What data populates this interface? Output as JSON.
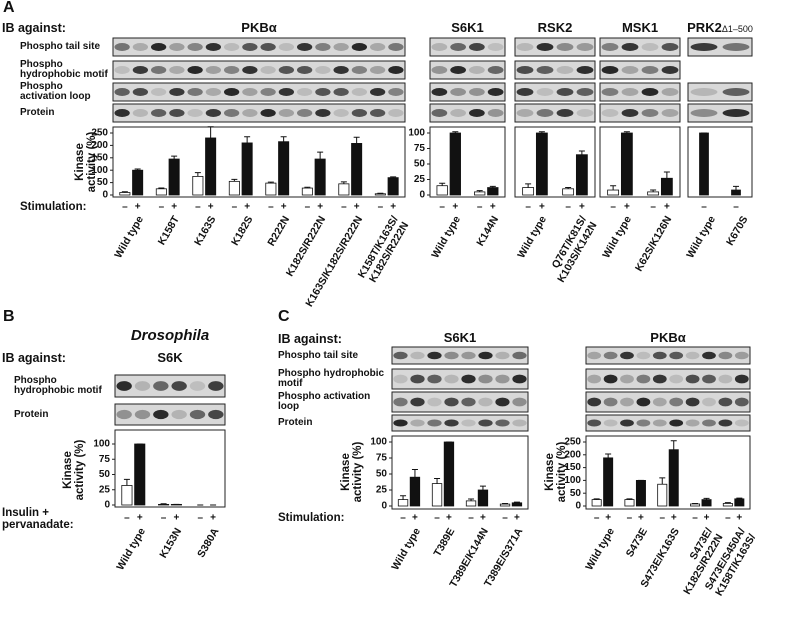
{
  "panels": [
    {
      "label": "A",
      "ib_label": "IB against:",
      "blot_rows": [
        "Phospho tail site",
        "Phospho hydrophobic motif",
        "Phospho activation loop",
        "Protein"
      ],
      "stimulation_label": "Stimulation:"
    },
    {
      "label": "B",
      "ib_label": "IB against:",
      "blot_rows": [
        "Phospho hydrophobic motif",
        "Protein"
      ],
      "stimulation_label": "Insulin + pervanadate:"
    },
    {
      "label": "C",
      "ib_label": "IB against:",
      "blot_rows": [
        "Phospho tail site",
        "Phospho hydrophobic motif",
        "Phospho activation loop",
        "Protein"
      ],
      "stimulation_label": "Stimulation:"
    }
  ],
  "chart_data": [
    {
      "type": "bar",
      "title": "PKBα",
      "ylabel": "Kinase activity (%)",
      "categories": [
        "Wild type",
        "K158T",
        "K163S",
        "K182S",
        "R222N",
        "K182S/R222N",
        "K163S/K182S/R222N",
        "K158T/K163S/\nK182S/R222N"
      ],
      "series": [
        {
          "name": "–",
          "color": "#ffffff",
          "values": [
            10,
            25,
            75,
            55,
            48,
            28,
            45,
            5
          ],
          "errors": [
            3,
            3,
            15,
            8,
            4,
            3,
            8,
            2
          ]
        },
        {
          "name": "+",
          "color": "#111111",
          "values": [
            100,
            145,
            230,
            210,
            215,
            145,
            208,
            70
          ],
          "errors": [
            5,
            12,
            45,
            25,
            20,
            28,
            25,
            3
          ]
        }
      ],
      "ylim": [
        0,
        250
      ],
      "yticks": [
        0,
        50,
        100,
        150,
        200,
        250
      ]
    },
    {
      "type": "bar",
      "title": "S6K1",
      "categories": [
        "Wild type",
        "K144N"
      ],
      "series": [
        {
          "name": "–",
          "color": "#ffffff",
          "values": [
            15,
            5
          ],
          "errors": [
            4,
            2
          ]
        },
        {
          "name": "+",
          "color": "#111111",
          "values": [
            100,
            12
          ],
          "errors": [
            2,
            2
          ]
        }
      ],
      "ylim": [
        0,
        100
      ],
      "yticks": [
        0,
        25,
        50,
        75,
        100
      ]
    },
    {
      "type": "bar",
      "title": "RSK2",
      "categories": [
        "Wild type",
        "Q76T/K81S/\nK103S/K142N"
      ],
      "series": [
        {
          "name": "–",
          "color": "#ffffff",
          "values": [
            12,
            10
          ],
          "errors": [
            6,
            2
          ]
        },
        {
          "name": "+",
          "color": "#111111",
          "values": [
            100,
            65
          ],
          "errors": [
            2,
            6
          ]
        }
      ],
      "ylim": [
        0,
        100
      ]
    },
    {
      "type": "bar",
      "title": "MSK1",
      "categories": [
        "Wild type",
        "K62S/K126N"
      ],
      "series": [
        {
          "name": "–",
          "color": "#ffffff",
          "values": [
            8,
            5
          ],
          "errors": [
            7,
            3
          ]
        },
        {
          "name": "+",
          "color": "#111111",
          "values": [
            100,
            27
          ],
          "errors": [
            2,
            10
          ]
        }
      ],
      "ylim": [
        0,
        100
      ]
    },
    {
      "type": "bar",
      "title": "PRK2",
      "title_subscript": "Δ1–500",
      "categories": [
        "Wild type",
        "K670S"
      ],
      "series": [
        {
          "name": "–",
          "color": "#111111",
          "values": [
            100,
            8
          ],
          "errors": [
            0,
            6
          ]
        }
      ],
      "ylim": [
        0,
        100
      ]
    },
    {
      "type": "bar",
      "title": "S6K",
      "subtitle": "Drosophila",
      "ylabel": "Kinase activity (%)",
      "categories": [
        "Wild type",
        "K153N",
        "S380A"
      ],
      "series": [
        {
          "name": "–",
          "color": "#ffffff",
          "values": [
            32,
            1,
            0
          ],
          "errors": [
            10,
            1,
            0
          ]
        },
        {
          "name": "+",
          "color": "#111111",
          "values": [
            100,
            1,
            0
          ],
          "errors": [
            0,
            0,
            0
          ]
        }
      ],
      "ylim": [
        0,
        100
      ],
      "yticks": [
        0,
        25,
        50,
        75,
        100
      ]
    },
    {
      "type": "bar",
      "title": "S6K1",
      "ylabel": "Kinase activity (%)",
      "categories": [
        "Wild type",
        "T389E",
        "T389E/K144N",
        "T389E/S371A"
      ],
      "series": [
        {
          "name": "–",
          "color": "#ffffff",
          "values": [
            10,
            35,
            8,
            3
          ],
          "errors": [
            6,
            8,
            3,
            1
          ]
        },
        {
          "name": "+",
          "color": "#111111",
          "values": [
            45,
            100,
            25,
            5
          ],
          "errors": [
            12,
            0,
            6,
            1
          ]
        }
      ],
      "ylim": [
        0,
        100
      ],
      "yticks": [
        0,
        25,
        50,
        75,
        100
      ]
    },
    {
      "type": "bar",
      "title": "PKBα",
      "ylabel": "Kinase activity (%)",
      "categories": [
        "Wild type",
        "S473E",
        "S473E/K163S",
        "S473E/\nK182S/R222N",
        "S473E/S450A/\nK158T/K163S/"
      ],
      "series": [
        {
          "name": "–",
          "color": "#ffffff",
          "values": [
            25,
            25,
            85,
            8,
            10
          ],
          "errors": [
            3,
            3,
            25,
            2,
            3
          ]
        },
        {
          "name": "+",
          "color": "#111111",
          "values": [
            188,
            100,
            220,
            25,
            28
          ],
          "errors": [
            15,
            0,
            35,
            5,
            3
          ]
        }
      ],
      "ylim": [
        0,
        250
      ],
      "yticks": [
        0,
        50,
        100,
        150,
        200,
        250
      ]
    }
  ]
}
